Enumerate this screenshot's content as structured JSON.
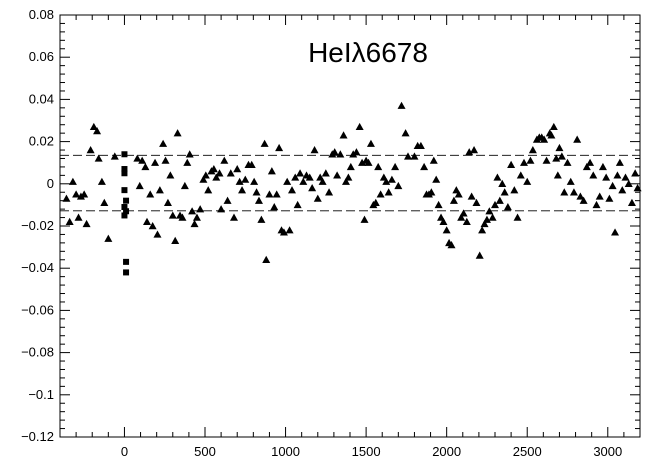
{
  "chart_data": {
    "type": "scatter",
    "title": "HeIλ6678",
    "xlabel": "",
    "ylabel": "",
    "xlim": [
      -400,
      3200
    ],
    "ylim": [
      -0.12,
      0.08
    ],
    "grid": false,
    "legend": "none",
    "x_ticks": [
      0,
      500,
      1000,
      1500,
      2000,
      2500,
      3000
    ],
    "x_tick_labels": [
      "0",
      "500",
      "1000",
      "1500",
      "2000",
      "2500",
      "3000"
    ],
    "y_ticks": [
      -0.12,
      -0.1,
      -0.08,
      -0.06,
      -0.04,
      -0.02,
      0,
      0.02,
      0.04,
      0.06,
      0.08
    ],
    "y_tick_labels": [
      "−0.12",
      "−0.1",
      "−0.08",
      "−0.06",
      "−0.04",
      "−0.02",
      "0",
      "0.02",
      "0.04",
      "0.06",
      "0.08"
    ],
    "reference_lines": [
      0.0135,
      -0.0128
    ],
    "series": [
      {
        "marker": "triangle",
        "color": "#000000",
        "points": [
          [
            -360,
            -0.007
          ],
          [
            -340,
            -0.018
          ],
          [
            -320,
            0.001
          ],
          [
            -300,
            -0.005
          ],
          [
            -285,
            -0.016
          ],
          [
            -270,
            -0.006
          ],
          [
            -250,
            -0.005
          ],
          [
            -235,
            -0.019
          ],
          [
            -210,
            0.016
          ],
          [
            -190,
            0.027
          ],
          [
            -170,
            0.025
          ],
          [
            -160,
            0.012
          ],
          [
            -140,
            0.001
          ],
          [
            -125,
            -0.009
          ],
          [
            -100,
            -0.026
          ],
          [
            -60,
            0.013
          ],
          [
            80,
            0.012
          ],
          [
            95,
            -0.001
          ],
          [
            110,
            0.011
          ],
          [
            130,
            0.008
          ],
          [
            140,
            -0.018
          ],
          [
            160,
            -0.005
          ],
          [
            175,
            -0.02
          ],
          [
            190,
            0.01
          ],
          [
            205,
            -0.024
          ],
          [
            220,
            -0.003
          ],
          [
            240,
            0.019
          ],
          [
            255,
            0.011
          ],
          [
            270,
            -0.009
          ],
          [
            285,
            0.004
          ],
          [
            300,
            -0.015
          ],
          [
            315,
            -0.027
          ],
          [
            330,
            0.024
          ],
          [
            345,
            -0.015
          ],
          [
            360,
            -0.016
          ],
          [
            375,
            -0.001
          ],
          [
            390,
            0.01
          ],
          [
            405,
            0.014
          ],
          [
            420,
            -0.013
          ],
          [
            435,
            -0.019
          ],
          [
            450,
            -0.016
          ],
          [
            470,
            -0.012
          ],
          [
            490,
            0.002
          ],
          [
            505,
            0.004
          ],
          [
            520,
            -0.003
          ],
          [
            540,
            0.006
          ],
          [
            555,
            0.007
          ],
          [
            570,
            0.003
          ],
          [
            590,
            0.005
          ],
          [
            600,
            -0.012
          ],
          [
            620,
            0.011
          ],
          [
            640,
            -0.008
          ],
          [
            660,
            0.005
          ],
          [
            680,
            -0.016
          ],
          [
            700,
            0.007
          ],
          [
            715,
            0.001
          ],
          [
            730,
            -0.003
          ],
          [
            750,
            0.002
          ],
          [
            770,
            0.009
          ],
          [
            790,
            0.009
          ],
          [
            805,
            0.001
          ],
          [
            820,
            -0.004
          ],
          [
            835,
            -0.008
          ],
          [
            850,
            -0.017
          ],
          [
            870,
            0.019
          ],
          [
            880,
            -0.036
          ],
          [
            900,
            -0.005
          ],
          [
            915,
            0.006
          ],
          [
            930,
            -0.011
          ],
          [
            945,
            -0.005
          ],
          [
            960,
            0.017
          ],
          [
            975,
            -0.022
          ],
          [
            990,
            -0.023
          ],
          [
            1010,
            0.001
          ],
          [
            1025,
            -0.022
          ],
          [
            1040,
            -0.003
          ],
          [
            1060,
            0.003
          ],
          [
            1075,
            -0.01
          ],
          [
            1090,
            0.005
          ],
          [
            1110,
            0.001
          ],
          [
            1130,
            0.004
          ],
          [
            1150,
            0.003
          ],
          [
            1165,
            -0.002
          ],
          [
            1180,
            0.016
          ],
          [
            1200,
            -0.007
          ],
          [
            1215,
            0.003
          ],
          [
            1230,
            0.001
          ],
          [
            1250,
            0.005
          ],
          [
            1270,
            -0.004
          ],
          [
            1290,
            0.014
          ],
          [
            1305,
            0.015
          ],
          [
            1320,
            0.004
          ],
          [
            1340,
            0.014
          ],
          [
            1360,
            0.023
          ],
          [
            1375,
            0.001
          ],
          [
            1390,
            0.003
          ],
          [
            1405,
            0.008
          ],
          [
            1420,
            0.014
          ],
          [
            1440,
            0.015
          ],
          [
            1460,
            0.027
          ],
          [
            1475,
            0.01
          ],
          [
            1490,
            -0.017
          ],
          [
            1500,
            0.011
          ],
          [
            1515,
            0.01
          ],
          [
            1530,
            0.019
          ],
          [
            1545,
            -0.01
          ],
          [
            1560,
            -0.009
          ],
          [
            1575,
            0.008
          ],
          [
            1590,
            -0.005
          ],
          [
            1610,
            0.003
          ],
          [
            1625,
            0.001
          ],
          [
            1640,
            -0.004
          ],
          [
            1660,
            0.002
          ],
          [
            1680,
            0.008
          ],
          [
            1700,
            -0.001
          ],
          [
            1720,
            0.037
          ],
          [
            1745,
            0.024
          ],
          [
            1760,
            0.013
          ],
          [
            1800,
            0.013
          ],
          [
            1820,
            0.018
          ],
          [
            1840,
            0.018
          ],
          [
            1860,
            0.008
          ],
          [
            1875,
            -0.005
          ],
          [
            1890,
            -0.005
          ],
          [
            1905,
            -0.004
          ],
          [
            1920,
            0.011
          ],
          [
            1935,
            0.002
          ],
          [
            1950,
            -0.01
          ],
          [
            1965,
            -0.016
          ],
          [
            1980,
            -0.018
          ],
          [
            2000,
            -0.022
          ],
          [
            2015,
            -0.028
          ],
          [
            2030,
            -0.029
          ],
          [
            2045,
            -0.008
          ],
          [
            2060,
            -0.003
          ],
          [
            2075,
            -0.005
          ],
          [
            2090,
            -0.016
          ],
          [
            2105,
            -0.014
          ],
          [
            2125,
            -0.018
          ],
          [
            2140,
            0.015
          ],
          [
            2155,
            -0.006
          ],
          [
            2170,
            0.016
          ],
          [
            2185,
            -0.009
          ],
          [
            2205,
            -0.034
          ],
          [
            2220,
            -0.022
          ],
          [
            2235,
            -0.019
          ],
          [
            2250,
            -0.017
          ],
          [
            2265,
            -0.013
          ],
          [
            2285,
            -0.016
          ],
          [
            2300,
            -0.01
          ],
          [
            2315,
            0.003
          ],
          [
            2330,
            -0.008
          ],
          [
            2345,
            0.0
          ],
          [
            2360,
            -0.004
          ],
          [
            2380,
            -0.011
          ],
          [
            2400,
            0.009
          ],
          [
            2420,
            -0.003
          ],
          [
            2440,
            -0.016
          ],
          [
            2460,
            0.004
          ],
          [
            2480,
            0.01
          ],
          [
            2500,
            0.001
          ],
          [
            2520,
            0.011
          ],
          [
            2535,
            0.016
          ],
          [
            2560,
            0.021
          ],
          [
            2575,
            0.022
          ],
          [
            2590,
            0.022
          ],
          [
            2605,
            0.021
          ],
          [
            2620,
            0.011
          ],
          [
            2640,
            0.024
          ],
          [
            2650,
            0.023
          ],
          [
            2665,
            0.027
          ],
          [
            2680,
            0.012
          ],
          [
            2690,
            0.004
          ],
          [
            2700,
            0.017
          ],
          [
            2715,
            0.013
          ],
          [
            2730,
            -0.004
          ],
          [
            2750,
            0.01
          ],
          [
            2770,
            0.001
          ],
          [
            2790,
            -0.004
          ],
          [
            2810,
            0.021
          ],
          [
            2830,
            -0.006
          ],
          [
            2850,
            -0.008
          ],
          [
            2870,
            0.008
          ],
          [
            2890,
            0.01
          ],
          [
            2910,
            0.004
          ],
          [
            2930,
            -0.01
          ],
          [
            2950,
            -0.006
          ],
          [
            2970,
            0.008
          ],
          [
            2990,
            0.003
          ],
          [
            3010,
            -0.007
          ],
          [
            3030,
            -0.001
          ],
          [
            3045,
            -0.023
          ],
          [
            3060,
            0.004
          ],
          [
            3075,
            0.01
          ],
          [
            3090,
            -0.003
          ],
          [
            3110,
            0.003
          ],
          [
            3130,
            0.0
          ],
          [
            3150,
            -0.009
          ],
          [
            3170,
            0.005
          ],
          [
            3185,
            -0.002
          ]
        ]
      },
      {
        "marker": "square",
        "color": "#000000",
        "points": [
          [
            0,
            0.014
          ],
          [
            0,
            0.007
          ],
          [
            0,
            0.005
          ],
          [
            0,
            -0.003
          ],
          [
            0,
            -0.011
          ],
          [
            0,
            -0.015
          ],
          [
            10,
            -0.008
          ],
          [
            10,
            -0.013
          ],
          [
            10,
            -0.037
          ],
          [
            10,
            -0.042
          ]
        ]
      }
    ]
  }
}
